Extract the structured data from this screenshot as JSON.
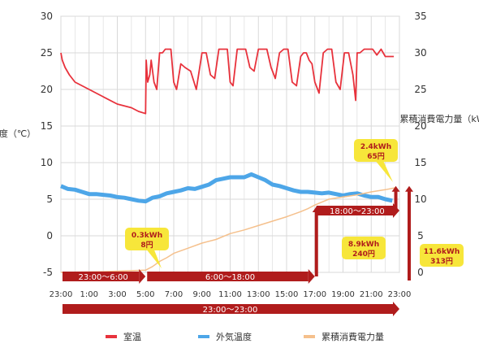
{
  "chart_data": {
    "type": "line",
    "left_axis_label": "温度（℃）",
    "right_axis_label": "累積消費電力量（kWh）",
    "left_ylim": [
      -5,
      30
    ],
    "left_ticks": [
      "30",
      "25",
      "20",
      "15",
      "10",
      "5",
      "0",
      "-5"
    ],
    "right_ylim": [
      0,
      35
    ],
    "right_ticks": [
      "35",
      "30",
      "25",
      "20",
      "15",
      "10",
      "5",
      "0"
    ],
    "x_ticks": [
      "23:00",
      "1:00",
      "3:00",
      "5:00",
      "7:00",
      "9:00",
      "11:00",
      "13:00",
      "15:00",
      "17:00",
      "19:00",
      "21:00",
      "23:00"
    ],
    "x_range_hours": [
      0,
      24
    ],
    "grid": true,
    "legend_position": "bottom",
    "series": [
      {
        "name": "室温",
        "color": "#e8323c",
        "axis": "left",
        "x": [
          0,
          0.1,
          0.3,
          0.6,
          1,
          1.5,
          2,
          3,
          4,
          5,
          5.5,
          6.0,
          6.05,
          6.15,
          6.3,
          6.4,
          6.6,
          6.8,
          7.0,
          7.2,
          7.4,
          7.6,
          7.8,
          8.0,
          8.2,
          8.5,
          8.8,
          9.2,
          9.6,
          10.0,
          10.3,
          10.6,
          10.9,
          11.2,
          11.5,
          11.8,
          12.0,
          12.2,
          12.5,
          12.8,
          13.1,
          13.4,
          13.7,
          14.0,
          14.3,
          14.6,
          14.9,
          15.2,
          15.5,
          15.8,
          16.1,
          16.4,
          16.7,
          17.0,
          17.2,
          17.4,
          17.6,
          17.8,
          18.0,
          18.3,
          18.6,
          18.9,
          19.2,
          19.5,
          19.8,
          20.1,
          20.4,
          20.7,
          20.9,
          21.0,
          21.2,
          21.5,
          21.8,
          22.1,
          22.4,
          22.7,
          23.0,
          23.3,
          23.6
        ],
        "values": [
          25,
          24,
          23,
          22,
          21,
          20.5,
          20,
          19,
          18,
          17.5,
          17,
          16.7,
          24,
          21,
          22,
          24,
          21,
          20,
          25,
          25,
          25.5,
          25.5,
          25.5,
          21,
          20,
          23.5,
          23,
          22.5,
          20,
          25,
          25,
          22,
          21.5,
          25.5,
          25.5,
          25.5,
          21,
          20.5,
          25.5,
          25.5,
          25.5,
          23,
          22.5,
          25.5,
          25.5,
          25.5,
          23,
          21.5,
          25,
          25.5,
          25.5,
          21,
          20.5,
          24.5,
          25,
          25,
          24,
          23.5,
          21,
          19.5,
          25,
          25.5,
          25.5,
          21,
          20,
          25,
          25,
          22,
          18.5,
          25,
          25,
          25.5,
          25.5,
          25.5,
          24.7,
          25.5,
          24.5,
          24.5,
          24.5
        ]
      },
      {
        "name": "外気温度",
        "color": "#4da6e8",
        "axis": "left",
        "x": [
          0,
          0.5,
          1,
          1.5,
          2,
          2.5,
          3,
          3.5,
          4,
          4.5,
          5,
          5.5,
          6,
          6.5,
          7,
          7.5,
          8,
          8.5,
          9,
          9.5,
          10,
          10.5,
          11,
          11.5,
          12,
          12.5,
          13,
          13.5,
          14,
          14.5,
          15,
          15.5,
          16,
          16.5,
          17,
          17.5,
          18,
          18.5,
          19,
          19.5,
          20,
          20.5,
          21,
          21.5,
          22,
          22.5,
          23,
          23.5
        ],
        "values": [
          6.8,
          6.4,
          6.3,
          6.0,
          5.7,
          5.7,
          5.6,
          5.5,
          5.3,
          5.2,
          5.0,
          4.8,
          4.7,
          5.2,
          5.4,
          5.8,
          6.0,
          6.2,
          6.5,
          6.4,
          6.7,
          7.0,
          7.6,
          7.8,
          8.0,
          8.0,
          8.0,
          8.4,
          8.0,
          7.6,
          7.0,
          6.8,
          6.5,
          6.2,
          6.0,
          6.0,
          5.9,
          5.8,
          5.9,
          5.7,
          5.5,
          5.7,
          5.8,
          5.5,
          5.3,
          5.3,
          5.0,
          4.8
        ]
      },
      {
        "name": "累積消費電力量",
        "color": "#f5c08c",
        "axis": "right",
        "x": [
          0,
          3,
          6,
          6.5,
          7,
          7.5,
          8,
          9,
          10,
          11,
          12,
          13,
          14,
          15,
          16,
          17,
          17.5,
          18,
          18.5,
          19,
          20,
          21,
          22,
          23,
          23.8
        ],
        "values": [
          0,
          0.1,
          0.3,
          0.8,
          1.5,
          2.0,
          2.6,
          3.3,
          4.0,
          4.5,
          5.3,
          5.8,
          6.4,
          7.0,
          7.6,
          8.3,
          8.7,
          9.2,
          9.6,
          10.0,
          10.3,
          10.6,
          11.0,
          11.3,
          11.6
        ]
      }
    ],
    "period_labels": [
      {
        "label": "23:00～6:00",
        "start": 0,
        "end": 6,
        "row": 1
      },
      {
        "label": "6:00～18:00",
        "start": 6,
        "end": 18,
        "row": 1
      },
      {
        "label": "18:00～23:00",
        "start": 18,
        "end": 24,
        "row": 0
      },
      {
        "label": "23:00～23:00",
        "start": 0,
        "end": 24,
        "row": 2
      }
    ],
    "callouts": [
      {
        "kwh": "0.3kWh",
        "yen": "8円",
        "at_hour": 6,
        "value_kwh": 0.3
      },
      {
        "kwh": "8.9kWh",
        "yen": "240円",
        "at_hour": 18,
        "value_kwh": 8.9
      },
      {
        "kwh": "2.4kWh",
        "yen": "65円",
        "at_hour": 23.8,
        "value_kwh": 11.6
      },
      {
        "kwh": "11.6kWh",
        "yen": "313円",
        "at_hour": 24,
        "value_kwh": 11.6
      }
    ],
    "colors": {
      "arrow": "#b01c1c",
      "callout_bg": "#f7e63a",
      "callout_text": "#b01c1c",
      "grid": "#d9d9d9"
    }
  }
}
